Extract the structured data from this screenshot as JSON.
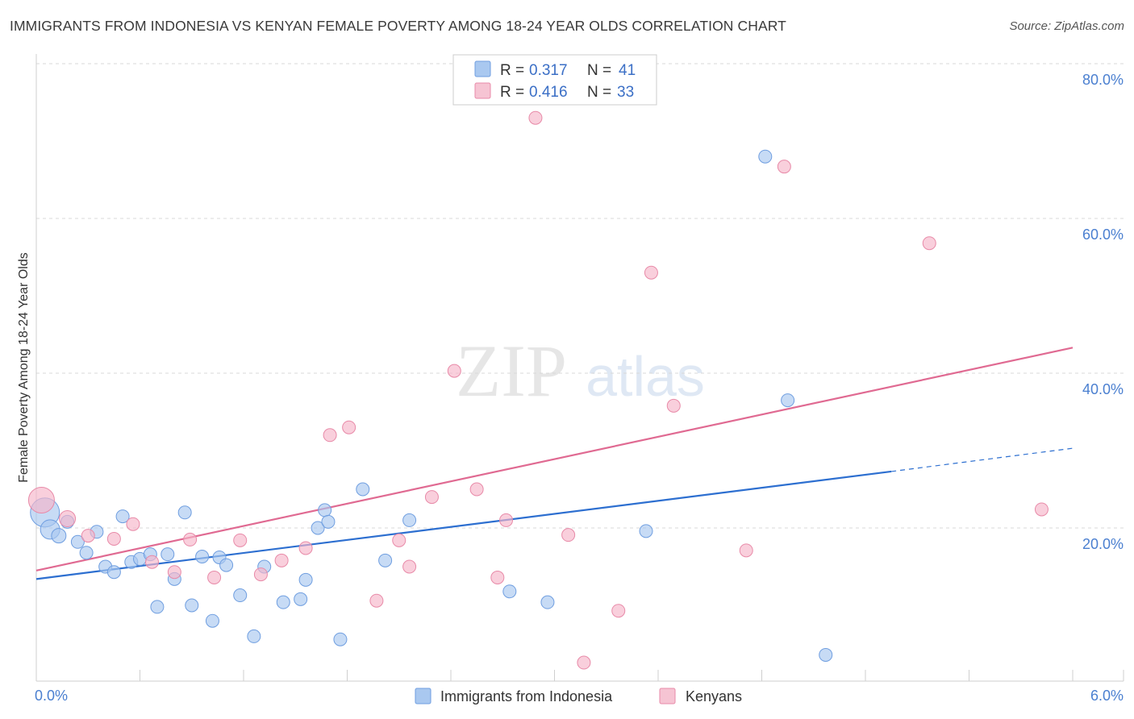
{
  "title": "IMMIGRANTS FROM INDONESIA VS KENYAN FEMALE POVERTY AMONG 18-24 YEAR OLDS CORRELATION CHART",
  "source": "Source: ZipAtlas.com",
  "watermark": {
    "zip": "ZIP",
    "atlas": "atlas"
  },
  "colors": {
    "blue_fill": "#a9c8f0",
    "blue_stroke": "#6f9ee0",
    "blue_line": "#2d6fd0",
    "pink_fill": "#f6b6c9",
    "pink_stroke": "#e88aa8",
    "pink_line": "#e06a92",
    "grid": "#d8d8d8",
    "tick_text": "#4a7fd0"
  },
  "legend": {
    "rows": [
      {
        "r_label": "R = ",
        "r_value": "0.317",
        "n_label": "N = ",
        "n_value": "41"
      },
      {
        "r_label": "R = ",
        "r_value": "0.416",
        "n_label": "N = ",
        "n_value": "33"
      }
    ]
  },
  "chart_data": {
    "type": "scatter",
    "title": "IMMIGRANTS FROM INDONESIA VS KENYAN FEMALE POVERTY AMONG 18-24 YEAR OLDS CORRELATION CHART",
    "xlabel": "",
    "ylabel": "Female Poverty Among 18-24 Year Olds",
    "xlim": [
      0,
      6
    ],
    "ylim": [
      0,
      80
    ],
    "x_tick_labels": {
      "min": "0.0%",
      "max": "6.0%"
    },
    "y_ticks": [
      {
        "value": 20,
        "label": "20.0%"
      },
      {
        "value": 40,
        "label": "40.0%"
      },
      {
        "value": 60,
        "label": "60.0%"
      },
      {
        "value": 80,
        "label": "80.0%"
      }
    ],
    "grid": true,
    "legend_position": "top-center",
    "series": [
      {
        "name": "Immigrants from Indonesia",
        "color": "blue",
        "points": [
          [
            0.05,
            22.0,
            18
          ],
          [
            0.08,
            19.8,
            12
          ],
          [
            0.13,
            19.0,
            9
          ],
          [
            0.18,
            20.8,
            8
          ],
          [
            0.24,
            18.2,
            8
          ],
          [
            0.29,
            16.8,
            8
          ],
          [
            0.35,
            19.5,
            8
          ],
          [
            0.4,
            15.0,
            8
          ],
          [
            0.45,
            14.3,
            8
          ],
          [
            0.5,
            21.5,
            8
          ],
          [
            0.55,
            15.6,
            8
          ],
          [
            0.6,
            16.0,
            8
          ],
          [
            0.66,
            16.6,
            8
          ],
          [
            0.7,
            9.8,
            8
          ],
          [
            0.76,
            16.6,
            8
          ],
          [
            0.8,
            13.4,
            8
          ],
          [
            0.86,
            22.0,
            8
          ],
          [
            0.9,
            10.0,
            8
          ],
          [
            0.96,
            16.3,
            8
          ],
          [
            1.02,
            8.0,
            8
          ],
          [
            1.06,
            16.2,
            8
          ],
          [
            1.1,
            15.2,
            8
          ],
          [
            1.18,
            11.3,
            8
          ],
          [
            1.26,
            6.0,
            8
          ],
          [
            1.32,
            15.0,
            8
          ],
          [
            1.43,
            10.4,
            8
          ],
          [
            1.53,
            10.8,
            8
          ],
          [
            1.56,
            13.3,
            8
          ],
          [
            1.63,
            20.0,
            8
          ],
          [
            1.67,
            22.3,
            8
          ],
          [
            1.69,
            20.8,
            8
          ],
          [
            1.76,
            5.6,
            8
          ],
          [
            1.89,
            25.0,
            8
          ],
          [
            2.02,
            15.8,
            8
          ],
          [
            2.16,
            21.0,
            8
          ],
          [
            2.74,
            11.8,
            8
          ],
          [
            2.96,
            10.4,
            8
          ],
          [
            3.53,
            19.6,
            8
          ],
          [
            4.22,
            68.0,
            8
          ],
          [
            4.35,
            36.5,
            8
          ],
          [
            4.57,
            3.6,
            8
          ]
        ],
        "trend": {
          "x_start": 0.0,
          "y_start": 13.4,
          "x_end": 4.95,
          "y_end": 27.3,
          "dash_x_end": 6.0,
          "dash_y_end": 30.3
        }
      },
      {
        "name": "Kenyans",
        "color": "pink",
        "points": [
          [
            0.03,
            23.6,
            16
          ],
          [
            0.18,
            21.2,
            10
          ],
          [
            0.3,
            19.0,
            8
          ],
          [
            0.45,
            18.6,
            8
          ],
          [
            0.56,
            20.5,
            8
          ],
          [
            0.67,
            15.6,
            8
          ],
          [
            0.8,
            14.3,
            8
          ],
          [
            0.89,
            18.5,
            8
          ],
          [
            1.03,
            13.6,
            8
          ],
          [
            1.18,
            18.4,
            8
          ],
          [
            1.3,
            14.0,
            8
          ],
          [
            1.42,
            15.8,
            8
          ],
          [
            1.56,
            17.4,
            8
          ],
          [
            1.7,
            32.0,
            8
          ],
          [
            1.81,
            33.0,
            8
          ],
          [
            1.97,
            10.6,
            8
          ],
          [
            2.1,
            18.4,
            8
          ],
          [
            2.16,
            15.0,
            8
          ],
          [
            2.29,
            24.0,
            8
          ],
          [
            2.42,
            40.3,
            8
          ],
          [
            2.55,
            25.0,
            8
          ],
          [
            2.67,
            13.6,
            8
          ],
          [
            2.72,
            21.0,
            8
          ],
          [
            2.89,
            73.0,
            8
          ],
          [
            3.08,
            19.1,
            8
          ],
          [
            3.17,
            2.6,
            8
          ],
          [
            3.37,
            9.3,
            8
          ],
          [
            3.56,
            53.0,
            8
          ],
          [
            3.69,
            35.8,
            8
          ],
          [
            4.11,
            17.1,
            8
          ],
          [
            4.33,
            66.7,
            8
          ],
          [
            5.17,
            56.8,
            8
          ],
          [
            5.82,
            22.4,
            8
          ]
        ],
        "trend": {
          "x_start": 0.0,
          "y_start": 14.5,
          "x_end": 6.0,
          "y_end": 43.3
        }
      }
    ]
  },
  "bottom_legend": [
    {
      "label": "Immigrants from Indonesia"
    },
    {
      "label": "Kenyans"
    }
  ]
}
